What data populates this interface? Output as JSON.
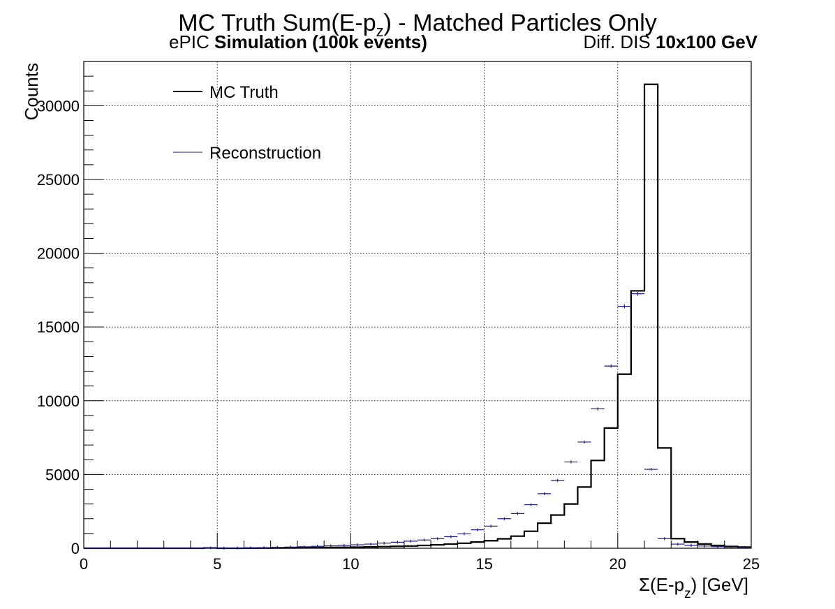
{
  "chart_data": {
    "type": "histogram",
    "title_prefix": "MC Truth Sum(E-p",
    "title_sub": "z",
    "title_suffix": ") - Matched Particles Only",
    "subtitle_left_normal": "ePIC ",
    "subtitle_left_bold": "Simulation (100k events)",
    "subtitle_right_normal": "Diff. DIS ",
    "subtitle_right_bold": "10x100 GeV",
    "xlabel_prefix": "Σ(E-p",
    "xlabel_sub": "z",
    "xlabel_suffix": ") [GeV]",
    "ylabel": "Counts",
    "xlim": [
      0,
      25
    ],
    "ylim": [
      0,
      33000
    ],
    "x_ticks": [
      0,
      5,
      10,
      15,
      20,
      25
    ],
    "y_ticks": [
      0,
      5000,
      10000,
      15000,
      20000,
      25000,
      30000
    ],
    "grid": true,
    "legend_position": "top-left",
    "bin_width": 0.5,
    "series": [
      {
        "name": "MC Truth",
        "style": "step",
        "color": "#000000",
        "bin_edges_start": 0,
        "values": [
          0,
          0,
          0,
          0,
          0,
          0,
          0,
          0,
          0,
          20,
          0,
          0,
          5,
          10,
          15,
          20,
          30,
          40,
          50,
          60,
          70,
          90,
          110,
          130,
          150,
          190,
          230,
          280,
          340,
          420,
          510,
          640,
          820,
          1150,
          1700,
          2250,
          3000,
          4150,
          5950,
          8150,
          11800,
          17450,
          31450,
          6800,
          650,
          420,
          290,
          190,
          120,
          80
        ]
      },
      {
        "name": "Reconstruction",
        "style": "points",
        "color": "#1a1a7a",
        "bin_edges_start": 0,
        "values": [
          0,
          0,
          0,
          0,
          0,
          0,
          0,
          0,
          0,
          20,
          10,
          15,
          30,
          40,
          60,
          80,
          100,
          130,
          160,
          190,
          230,
          280,
          350,
          410,
          480,
          560,
          650,
          780,
          980,
          1250,
          1500,
          2000,
          2350,
          2950,
          3700,
          4600,
          5850,
          7200,
          9450,
          12350,
          16400,
          17250,
          5350,
          650,
          280,
          200,
          150,
          110,
          80,
          60
        ]
      }
    ]
  }
}
